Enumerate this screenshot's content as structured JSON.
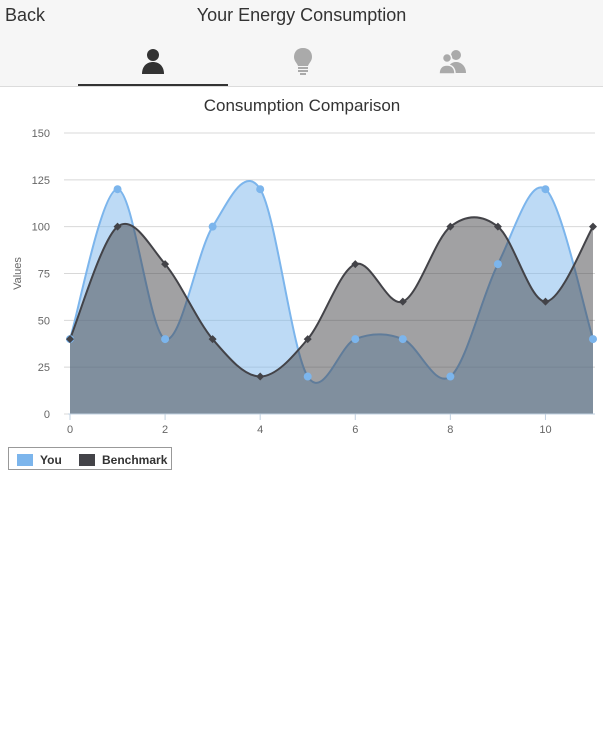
{
  "header": {
    "back_label": "Back",
    "title": "Your Energy Consumption",
    "tabs": [
      {
        "icon": "person-icon",
        "active": true
      },
      {
        "icon": "lightbulb-icon",
        "active": false
      },
      {
        "icon": "group-icon",
        "active": false
      }
    ]
  },
  "colors": {
    "you": "#7cb5ec",
    "benchmark": "#434348",
    "grid": "#d8d8d8"
  },
  "chart_data": {
    "type": "area",
    "title": "Consumption Comparison",
    "ylabel": "Values",
    "xlabel": "",
    "xlim": [
      0,
      11
    ],
    "ylim": [
      0,
      150
    ],
    "x_ticks": [
      0,
      2,
      4,
      6,
      8,
      10
    ],
    "y_ticks": [
      0,
      25,
      50,
      75,
      100,
      125,
      150
    ],
    "x": [
      0,
      1,
      2,
      3,
      4,
      5,
      6,
      7,
      8,
      9,
      10,
      11
    ],
    "series": [
      {
        "name": "You",
        "values": [
          40,
          120,
          40,
          100,
          120,
          20,
          40,
          40,
          20,
          80,
          120,
          40
        ]
      },
      {
        "name": "Benchmark",
        "values": [
          40,
          100,
          80,
          40,
          20,
          40,
          80,
          60,
          100,
          100,
          60,
          100
        ]
      }
    ],
    "legend_position": "bottom-left",
    "grid": true
  }
}
